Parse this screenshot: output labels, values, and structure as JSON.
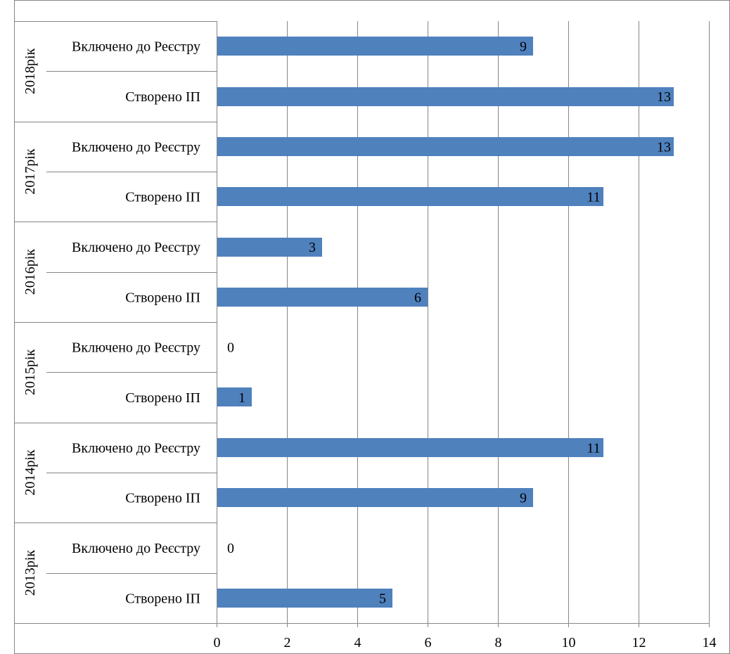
{
  "chart_data": {
    "type": "bar",
    "orientation": "horizontal",
    "title": "",
    "xlabel": "",
    "ylabel": "",
    "xlim": [
      0,
      14
    ],
    "x_ticks": [
      0,
      2,
      4,
      6,
      8,
      10,
      12,
      14
    ],
    "grid": "vertical",
    "legend": "none",
    "groups": [
      {
        "label": "2018рік",
        "items": [
          {
            "label": "Включено до Реєстру",
            "value": 9
          },
          {
            "label": "Створено ІП",
            "value": 13
          }
        ]
      },
      {
        "label": "2017рік",
        "items": [
          {
            "label": "Включено до Реєстру",
            "value": 13
          },
          {
            "label": "Створено ІП",
            "value": 11
          }
        ]
      },
      {
        "label": "2016рік",
        "items": [
          {
            "label": "Включено до Реєстру",
            "value": 3
          },
          {
            "label": "Створено ІП",
            "value": 6
          }
        ]
      },
      {
        "label": "2015рік",
        "items": [
          {
            "label": "Включено до Реєстру",
            "value": 0
          },
          {
            "label": "Створено ІП",
            "value": 1
          }
        ]
      },
      {
        "label": "2014рік",
        "items": [
          {
            "label": "Включено до Реєстру",
            "value": 11
          },
          {
            "label": "Створено ІП",
            "value": 9
          }
        ]
      },
      {
        "label": "2013рік",
        "items": [
          {
            "label": "Включено до Реєстру",
            "value": 0
          },
          {
            "label": "Створено ІП",
            "value": 5
          }
        ]
      }
    ],
    "colors": {
      "bar": "#4f81bd",
      "grid": "#868686",
      "axis": "#868686",
      "border": "#868686"
    }
  }
}
